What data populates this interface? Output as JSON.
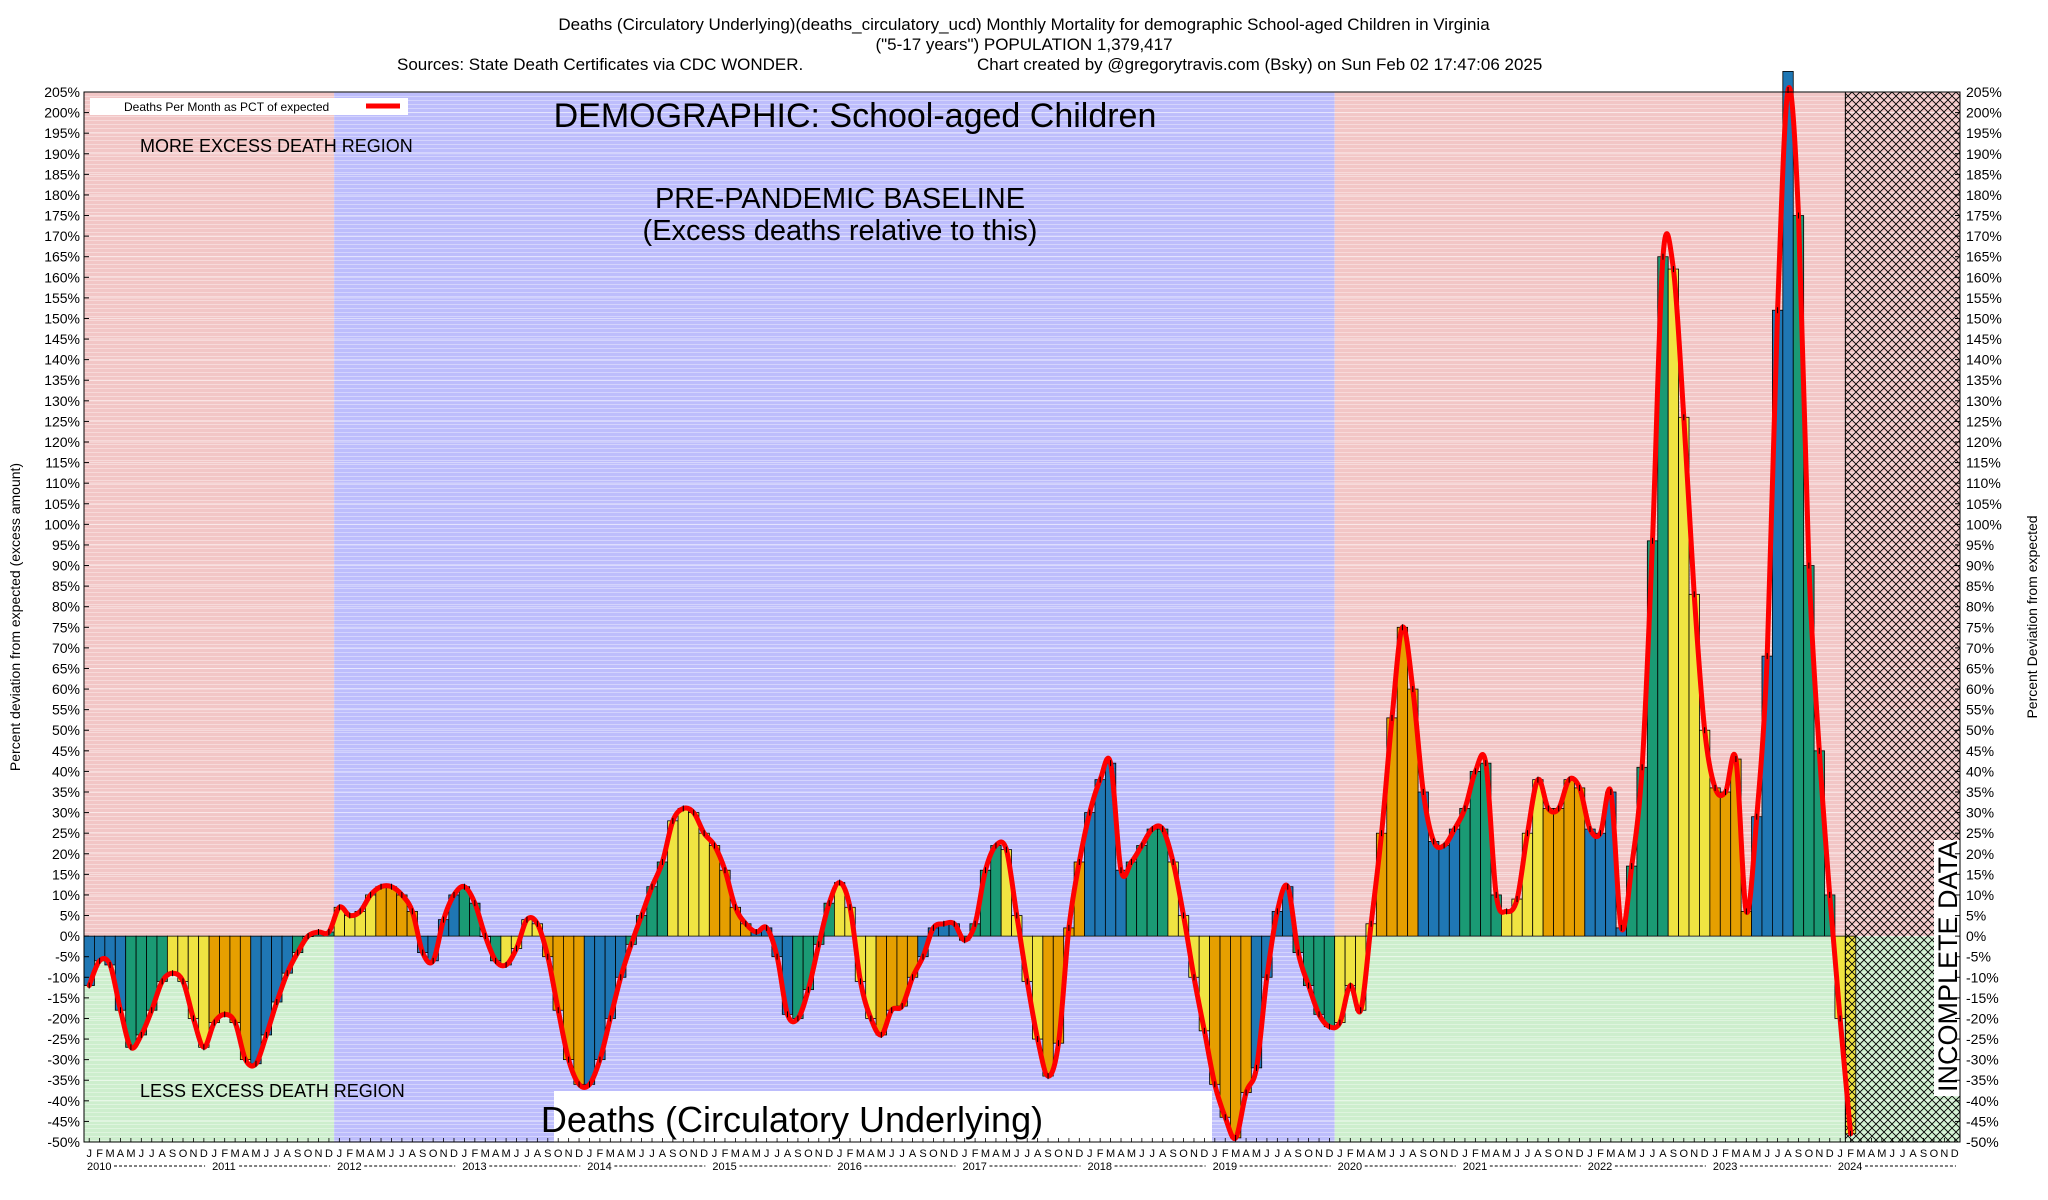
{
  "header": {
    "title_line1": "Deaths (Circulatory Underlying)(deaths_circulatory_ucd) Monthly Mortality for demographic School-aged Children in Virginia",
    "title_line2": "(\"5-17 years\") POPULATION 1,379,417",
    "title_line3_left": "Sources: State Death Certificates via CDC WONDER.",
    "title_line3_right": "Chart created by @gregorytravis.com (Bsky) on Sun Feb 02 17:47:06 2025"
  },
  "legend": {
    "label": "Deaths Per Month as PCT of expected",
    "color": "#ff0000"
  },
  "annotations": {
    "demographic": "DEMOGRAPHIC: School-aged Children",
    "baseline_line1": "PRE-PANDEMIC BASELINE",
    "baseline_line2": "(Excess deaths relative to this)",
    "more_excess": "MORE EXCESS DEATH REGION",
    "less_excess": "LESS EXCESS DEATH REGION",
    "cause_box": "Deaths (Circulatory Underlying)",
    "incomplete": "INCOMPLETE DATA"
  },
  "colors": {
    "more_region": "#f2c6c6",
    "less_region": "#cdeecd",
    "baseline_region": "#bdbdfc",
    "line": "#ff0000",
    "bar_palette": [
      "#1f77b4",
      "#1a9a74",
      "#f0e442",
      "#e69f00"
    ]
  },
  "chart_data": {
    "type": "bar",
    "ylabel_left": "Percent deviation from expected (excess amount)",
    "ylabel_right": "Percent Deviation from expected",
    "ylim": [
      -50,
      205
    ],
    "y_tick_step": 5,
    "x_years": [
      "2010",
      "2011",
      "2012",
      "2013",
      "2014",
      "2015",
      "2016",
      "2017",
      "2018",
      "2019",
      "2020",
      "2021",
      "2022",
      "2023",
      "2024"
    ],
    "month_letters": [
      "J",
      "F",
      "M",
      "A",
      "M",
      "J",
      "J",
      "A",
      "S",
      "O",
      "N",
      "D"
    ],
    "baseline_years": [
      "2012",
      "2013",
      "2014",
      "2015",
      "2016",
      "2017",
      "2018",
      "2019"
    ],
    "incomplete_from_month": "2024-02",
    "series": [
      {
        "name": "Deaths Per Month as PCT of expected",
        "start": "2010-01",
        "values": [
          -12,
          -6,
          -7,
          -18,
          -27,
          -24,
          -18,
          -11,
          -9,
          -11,
          -20,
          -27,
          -21,
          -19,
          -21,
          -30,
          -31,
          -24,
          -16,
          -9,
          -4,
          0,
          1,
          1,
          7,
          5,
          6,
          10,
          12,
          12,
          10,
          6,
          -4,
          -6,
          4,
          10,
          12,
          8,
          0,
          -6,
          -7,
          -3,
          4,
          3,
          -5,
          -18,
          -30,
          -36,
          -36,
          -30,
          -20,
          -10,
          -2,
          5,
          12,
          18,
          28,
          31,
          30,
          25,
          22,
          16,
          7,
          3,
          1,
          2,
          -5,
          -19,
          -20,
          -13,
          -2,
          8,
          13,
          7,
          -11,
          -20,
          -24,
          -18,
          -17,
          -10,
          -5,
          2,
          3,
          3,
          -1,
          3,
          16,
          22,
          21,
          5,
          -11,
          -25,
          -34,
          -26,
          2,
          18,
          30,
          38,
          42,
          16,
          18,
          22,
          26,
          26,
          18,
          5,
          -10,
          -23,
          -36,
          -44,
          -49,
          -38,
          -32,
          -10,
          6,
          12,
          -4,
          -12,
          -19,
          -22,
          -21,
          -12,
          -18,
          3,
          25,
          53,
          75,
          60,
          35,
          23,
          22,
          26,
          31,
          40,
          42,
          10,
          6,
          9,
          25,
          38,
          31,
          31,
          38,
          36,
          26,
          25,
          35,
          2,
          17,
          41,
          96,
          165,
          162,
          126,
          83,
          50,
          36,
          35,
          43,
          6,
          29,
          68,
          152,
          210,
          175,
          90,
          45,
          10,
          -20,
          -48
        ]
      }
    ]
  }
}
